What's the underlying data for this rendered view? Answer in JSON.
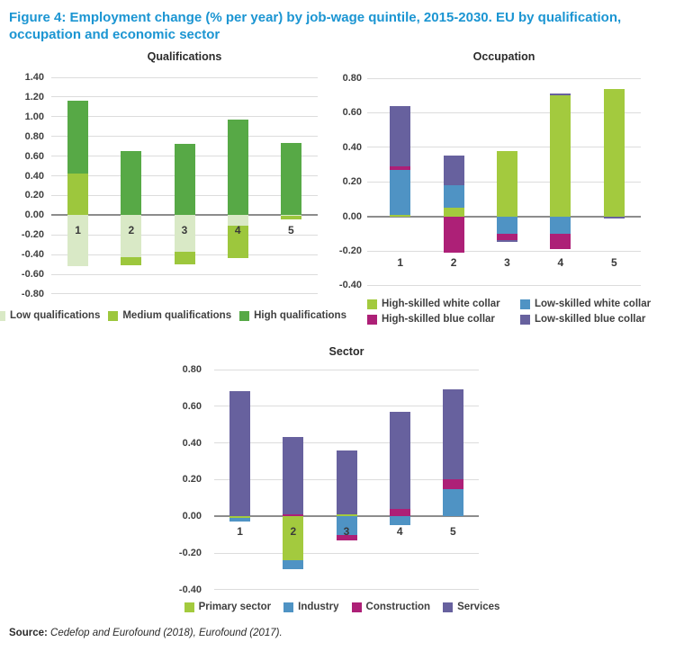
{
  "figure": {
    "title": "Figure 4: Employment change (% per year) by job-wage quintile, 2015-2030. EU by qualification, occupation and economic sector",
    "source_label": "Source:",
    "source_text": "Cedefop and Eurofound (2018), Eurofound (2017)."
  },
  "colors": {
    "title_blue": "#1b95d2",
    "gridline": "#dcdcdc",
    "zero_line": "#8c8c8c",
    "axis_text": "#3f3f3f",
    "low_qualifications": "#d9e9c6",
    "medium_qualifications": "#9dc73d",
    "high_qualifications": "#57a946",
    "lime_green": "#a3ca3e",
    "blue": "#4f93c4",
    "magenta": "#ad2077",
    "purple": "#67619e"
  },
  "chart_data": [
    {
      "id": "qualifications",
      "type": "bar",
      "stacked": true,
      "title": "Qualifications",
      "categories": [
        "1",
        "2",
        "3",
        "4",
        "5"
      ],
      "series": [
        {
          "name": "Low qualifications",
          "color": "#d9e9c6",
          "values": [
            -0.52,
            -0.43,
            -0.37,
            -0.11,
            -0.01
          ]
        },
        {
          "name": "Medium qualifications",
          "color": "#9dc73d",
          "values": [
            0.42,
            -0.08,
            -0.13,
            -0.33,
            -0.03
          ]
        },
        {
          "name": "High qualifications",
          "color": "#57a946",
          "values": [
            0.74,
            0.65,
            0.72,
            0.97,
            0.73
          ]
        }
      ],
      "xlabel": "",
      "ylabel": "",
      "ylim": [
        -0.8,
        1.4
      ],
      "ytick_step": 0.2,
      "grid": true,
      "legend_position": "bottom"
    },
    {
      "id": "occupation",
      "type": "bar",
      "stacked": true,
      "title": "Occupation",
      "categories": [
        "1",
        "2",
        "3",
        "4",
        "5"
      ],
      "series": [
        {
          "name": "High-skilled white collar",
          "color": "#a3ca3e",
          "values": [
            0.01,
            0.05,
            0.38,
            0.7,
            0.74
          ]
        },
        {
          "name": "Low-skilled white collar",
          "color": "#4f93c4",
          "values": [
            0.26,
            0.13,
            -0.1,
            -0.1,
            0.0
          ]
        },
        {
          "name": "High-skilled blue collar",
          "color": "#ad2077",
          "values": [
            0.02,
            -0.21,
            -0.04,
            -0.09,
            0.0
          ]
        },
        {
          "name": "Low-skilled blue collar",
          "color": "#67619e",
          "values": [
            0.35,
            0.17,
            -0.01,
            0.01,
            -0.01
          ]
        }
      ],
      "xlabel": "",
      "ylabel": "",
      "ylim": [
        -0.4,
        0.8
      ],
      "ytick_step": 0.2,
      "grid": true,
      "legend_position": "bottom"
    },
    {
      "id": "sector",
      "type": "bar",
      "stacked": true,
      "title": "Sector",
      "categories": [
        "1",
        "2",
        "3",
        "4",
        "5"
      ],
      "series": [
        {
          "name": "Primary sector",
          "color": "#a3ca3e",
          "values": [
            -0.01,
            -0.24,
            0.01,
            0.0,
            0.0
          ]
        },
        {
          "name": "Industry",
          "color": "#4f93c4",
          "values": [
            -0.02,
            -0.05,
            -0.1,
            -0.05,
            0.15
          ]
        },
        {
          "name": "Construction",
          "color": "#ad2077",
          "values": [
            0.0,
            0.01,
            -0.03,
            0.04,
            0.05
          ]
        },
        {
          "name": "Services",
          "color": "#67619e",
          "values": [
            0.68,
            0.42,
            0.35,
            0.53,
            0.49
          ]
        }
      ],
      "xlabel": "",
      "ylabel": "",
      "ylim": [
        -0.4,
        0.8
      ],
      "ytick_step": 0.2,
      "grid": true,
      "legend_position": "bottom"
    }
  ]
}
